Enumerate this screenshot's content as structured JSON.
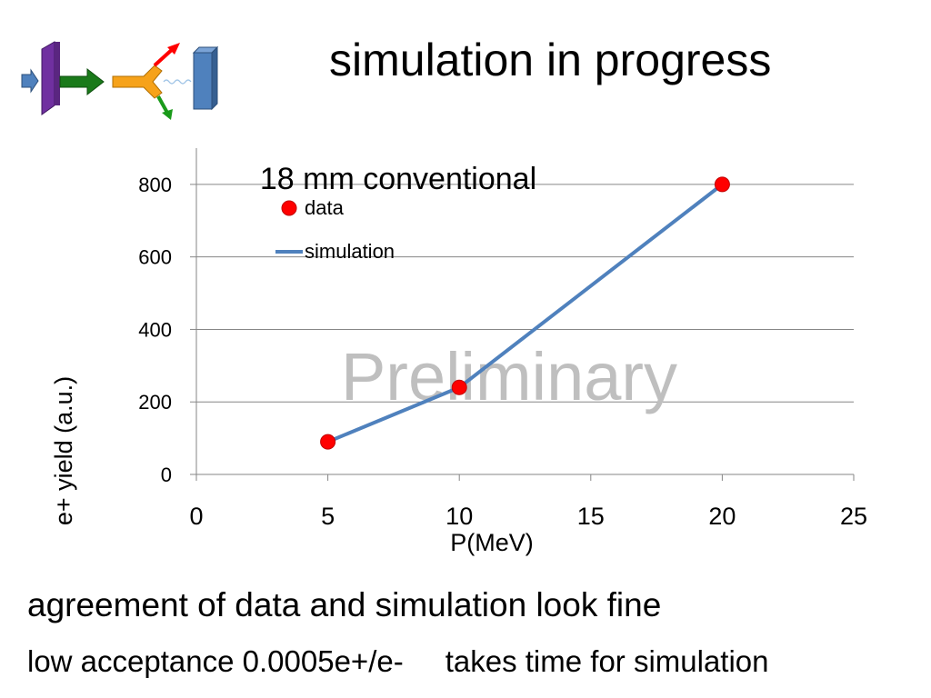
{
  "slide": {
    "title": "simulation in progress",
    "line1": "agreement of data and simulation look fine",
    "line2_part1": "low acceptance  0.0005e+/e-",
    "line2_part2": "takes time for simulation"
  },
  "colors": {
    "data_marker": "#ff0000",
    "simulation_line": "#4f81bd",
    "gridline": "#868686",
    "watermark": "#bfbfbf"
  },
  "chart_data": {
    "type": "line",
    "title": "18 mm conventional",
    "xlabel": "P(MeV)",
    "ylabel": "e+ yield (a.u.)",
    "xlim": [
      0,
      25
    ],
    "ylim": [
      0,
      900
    ],
    "xticks": [
      0,
      5,
      10,
      15,
      20,
      25
    ],
    "yticks": [
      0,
      200,
      400,
      600,
      800
    ],
    "grid": "horizontal",
    "legend_position": "top-left",
    "watermark": "Preliminary",
    "series": [
      {
        "name": "data",
        "style": "markers",
        "color": "#ff0000",
        "points": [
          {
            "x": 5,
            "y": 90
          },
          {
            "x": 10,
            "y": 240
          },
          {
            "x": 20,
            "y": 800
          }
        ]
      },
      {
        "name": "simulation",
        "style": "line",
        "color": "#4f81bd",
        "points": [
          {
            "x": 5,
            "y": 90
          },
          {
            "x": 10,
            "y": 240
          },
          {
            "x": 20,
            "y": 800
          }
        ]
      }
    ]
  }
}
